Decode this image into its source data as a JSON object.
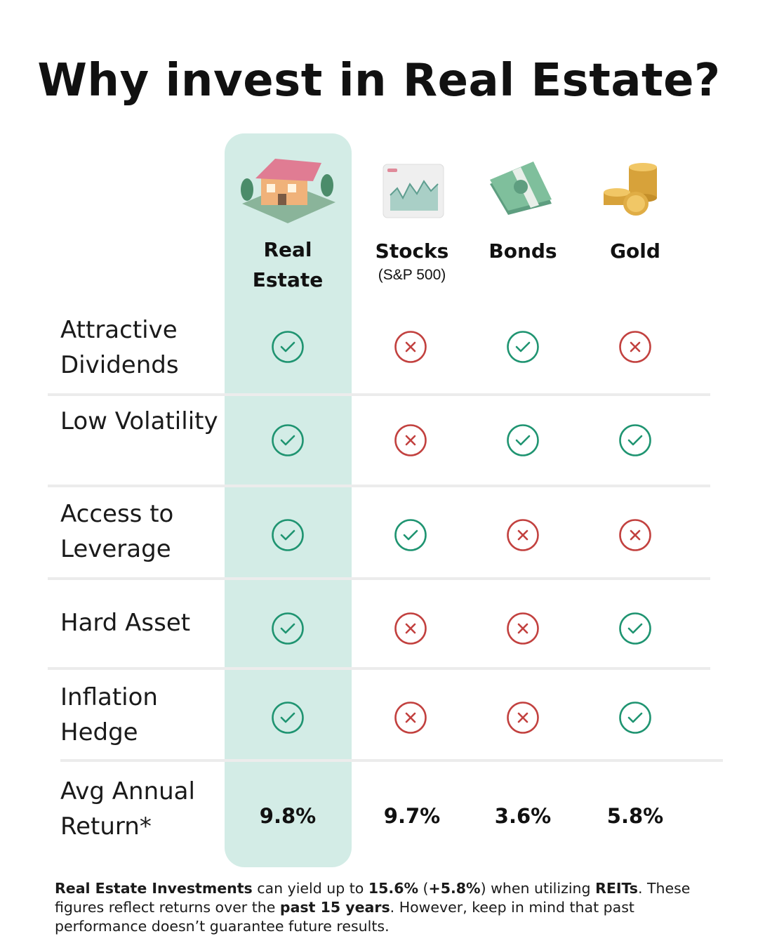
{
  "title": "Why invest in Real Estate?",
  "columns": [
    {
      "name": "Real Estate",
      "highlight": true
    },
    {
      "name": "Stocks",
      "note": "(S&P 500)"
    },
    {
      "name": "Bonds"
    },
    {
      "name": "Gold"
    }
  ],
  "rows": [
    {
      "label": "Attractive Dividends",
      "cells": [
        true,
        false,
        true,
        false
      ]
    },
    {
      "label": "Low Volatility",
      "cells": [
        true,
        false,
        true,
        true
      ]
    },
    {
      "label": "Access to Leverage",
      "cells": [
        true,
        true,
        false,
        false
      ]
    },
    {
      "label": "Hard Asset",
      "cells": [
        true,
        false,
        false,
        true
      ]
    },
    {
      "label": "Inflation Hedge",
      "cells": [
        true,
        false,
        false,
        true
      ]
    }
  ],
  "return_row": {
    "label": "Avg Annual Return*",
    "values": [
      "9.8%",
      "9.7%",
      "3.6%",
      "5.8%"
    ]
  },
  "footnote": {
    "segments": [
      {
        "text": "Real Estate Investments",
        "bold": true
      },
      {
        "text": " can yield up to ",
        "bold": false
      },
      {
        "text": "15.6%",
        "bold": true
      },
      {
        "text": " (",
        "bold": false
      },
      {
        "text": "+5.8%",
        "bold": true
      },
      {
        "text": ") when utilizing ",
        "bold": false
      },
      {
        "text": "REITs",
        "bold": true
      },
      {
        "text": ". These figures reflect returns over the ",
        "bold": false
      },
      {
        "text": "past 15 years",
        "bold": true
      },
      {
        "text": ". However, keep in mind that past performance doesn’t guarantee future results.",
        "bold": false
      }
    ]
  }
}
